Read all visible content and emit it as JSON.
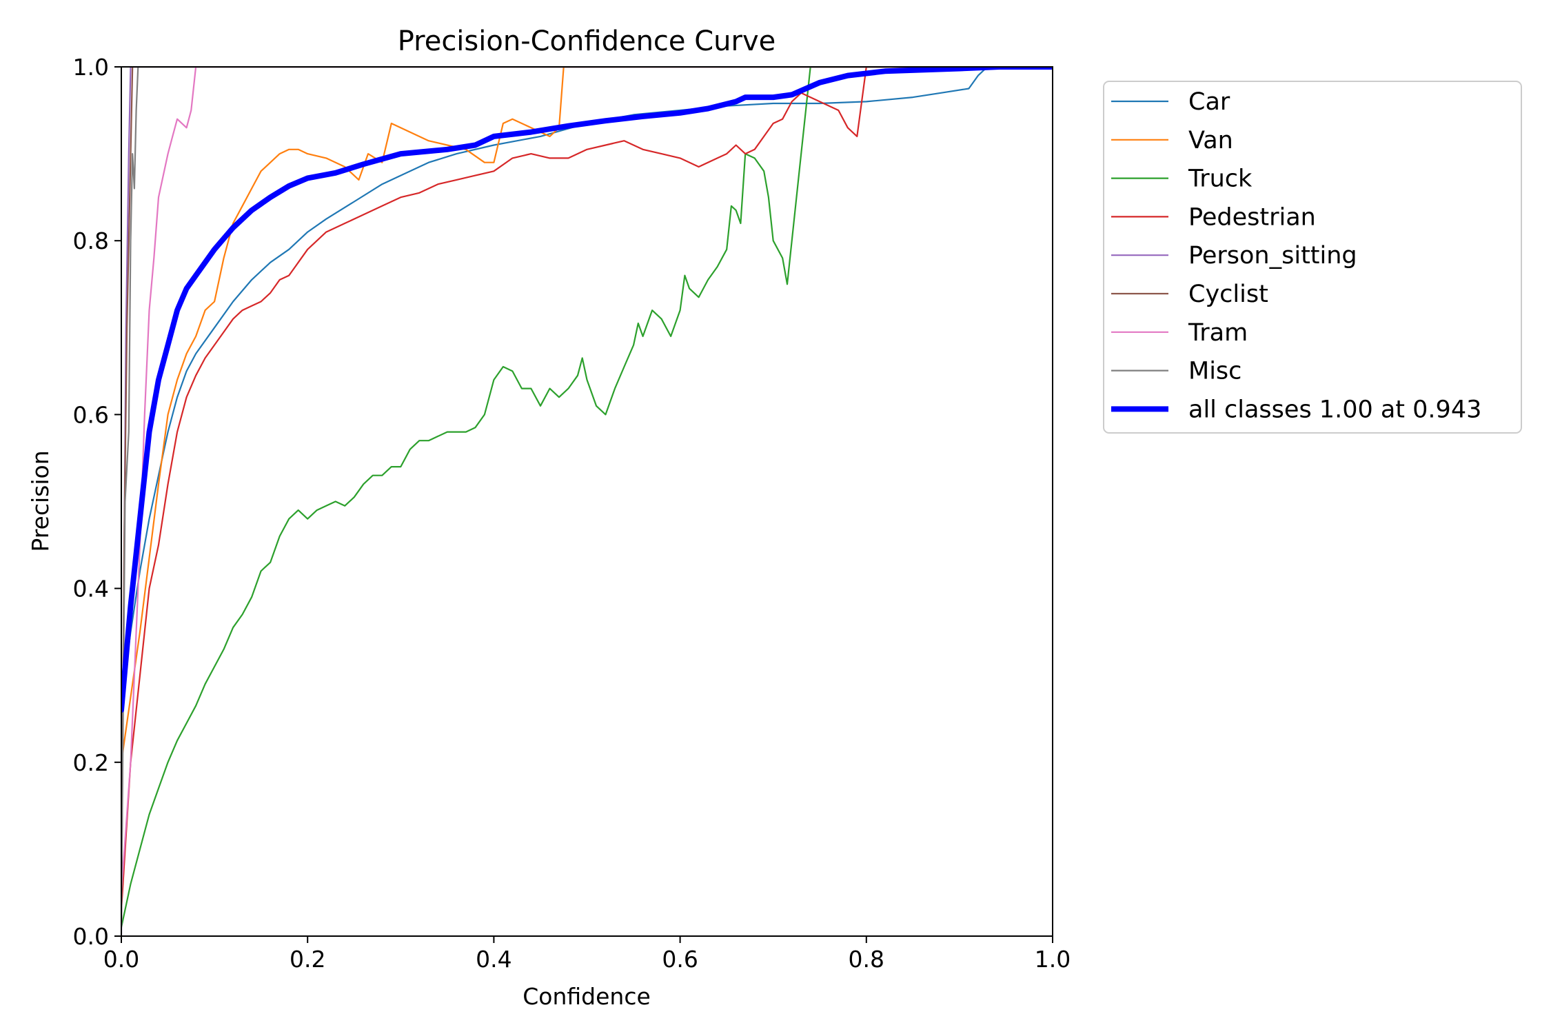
{
  "chart_data": {
    "type": "line",
    "title": "Precision-Confidence Curve",
    "xlabel": "Confidence",
    "ylabel": "Precision",
    "xlim": [
      0.0,
      1.0
    ],
    "ylim": [
      0.0,
      1.0
    ],
    "xticks": [
      "0.0",
      "0.2",
      "0.4",
      "0.6",
      "0.8",
      "1.0"
    ],
    "yticks": [
      "0.0",
      "0.2",
      "0.4",
      "0.6",
      "0.8",
      "1.0"
    ],
    "grid": false,
    "legend_position": "outside-right-top",
    "series": [
      {
        "name": "Car",
        "color": "#1f77b4",
        "points": [
          [
            0.0,
            0.27
          ],
          [
            0.01,
            0.35
          ],
          [
            0.02,
            0.42
          ],
          [
            0.03,
            0.48
          ],
          [
            0.04,
            0.53
          ],
          [
            0.05,
            0.58
          ],
          [
            0.06,
            0.62
          ],
          [
            0.07,
            0.65
          ],
          [
            0.08,
            0.67
          ],
          [
            0.1,
            0.7
          ],
          [
            0.12,
            0.73
          ],
          [
            0.14,
            0.755
          ],
          [
            0.16,
            0.775
          ],
          [
            0.18,
            0.79
          ],
          [
            0.2,
            0.81
          ],
          [
            0.22,
            0.825
          ],
          [
            0.25,
            0.845
          ],
          [
            0.28,
            0.865
          ],
          [
            0.3,
            0.875
          ],
          [
            0.33,
            0.89
          ],
          [
            0.36,
            0.9
          ],
          [
            0.4,
            0.91
          ],
          [
            0.45,
            0.92
          ],
          [
            0.5,
            0.935
          ],
          [
            0.55,
            0.945
          ],
          [
            0.6,
            0.95
          ],
          [
            0.65,
            0.955
          ],
          [
            0.7,
            0.958
          ],
          [
            0.75,
            0.958
          ],
          [
            0.8,
            0.96
          ],
          [
            0.85,
            0.965
          ],
          [
            0.88,
            0.97
          ],
          [
            0.91,
            0.975
          ],
          [
            0.92,
            0.99
          ],
          [
            0.93,
            1.0
          ],
          [
            1.0,
            1.0
          ]
        ]
      },
      {
        "name": "Van",
        "color": "#ff7f0e",
        "points": [
          [
            0.0,
            0.2
          ],
          [
            0.02,
            0.35
          ],
          [
            0.04,
            0.52
          ],
          [
            0.05,
            0.6
          ],
          [
            0.06,
            0.64
          ],
          [
            0.07,
            0.67
          ],
          [
            0.08,
            0.69
          ],
          [
            0.09,
            0.72
          ],
          [
            0.1,
            0.73
          ],
          [
            0.11,
            0.78
          ],
          [
            0.12,
            0.82
          ],
          [
            0.13,
            0.84
          ],
          [
            0.14,
            0.86
          ],
          [
            0.15,
            0.88
          ],
          [
            0.16,
            0.89
          ],
          [
            0.17,
            0.9
          ],
          [
            0.18,
            0.905
          ],
          [
            0.19,
            0.905
          ],
          [
            0.2,
            0.9
          ],
          [
            0.22,
            0.895
          ],
          [
            0.24,
            0.885
          ],
          [
            0.255,
            0.87
          ],
          [
            0.265,
            0.9
          ],
          [
            0.28,
            0.89
          ],
          [
            0.29,
            0.935
          ],
          [
            0.31,
            0.925
          ],
          [
            0.33,
            0.915
          ],
          [
            0.35,
            0.91
          ],
          [
            0.37,
            0.905
          ],
          [
            0.39,
            0.89
          ],
          [
            0.4,
            0.89
          ],
          [
            0.41,
            0.935
          ],
          [
            0.42,
            0.94
          ],
          [
            0.44,
            0.93
          ],
          [
            0.46,
            0.92
          ],
          [
            0.47,
            0.93
          ],
          [
            0.475,
            1.0
          ],
          [
            1.0,
            1.0
          ]
        ]
      },
      {
        "name": "Truck",
        "color": "#2ca02c",
        "points": [
          [
            0.0,
            0.01
          ],
          [
            0.01,
            0.06
          ],
          [
            0.02,
            0.1
          ],
          [
            0.03,
            0.14
          ],
          [
            0.04,
            0.17
          ],
          [
            0.05,
            0.2
          ],
          [
            0.06,
            0.225
          ],
          [
            0.07,
            0.245
          ],
          [
            0.08,
            0.265
          ],
          [
            0.09,
            0.29
          ],
          [
            0.1,
            0.31
          ],
          [
            0.11,
            0.33
          ],
          [
            0.12,
            0.355
          ],
          [
            0.13,
            0.37
          ],
          [
            0.14,
            0.39
          ],
          [
            0.15,
            0.42
          ],
          [
            0.16,
            0.43
          ],
          [
            0.17,
            0.46
          ],
          [
            0.18,
            0.48
          ],
          [
            0.19,
            0.49
          ],
          [
            0.2,
            0.48
          ],
          [
            0.21,
            0.49
          ],
          [
            0.22,
            0.495
          ],
          [
            0.23,
            0.5
          ],
          [
            0.24,
            0.495
          ],
          [
            0.25,
            0.505
          ],
          [
            0.26,
            0.52
          ],
          [
            0.27,
            0.53
          ],
          [
            0.28,
            0.53
          ],
          [
            0.29,
            0.54
          ],
          [
            0.3,
            0.54
          ],
          [
            0.31,
            0.56
          ],
          [
            0.32,
            0.57
          ],
          [
            0.33,
            0.57
          ],
          [
            0.34,
            0.575
          ],
          [
            0.35,
            0.58
          ],
          [
            0.36,
            0.58
          ],
          [
            0.37,
            0.58
          ],
          [
            0.38,
            0.585
          ],
          [
            0.39,
            0.6
          ],
          [
            0.4,
            0.64
          ],
          [
            0.41,
            0.655
          ],
          [
            0.42,
            0.65
          ],
          [
            0.43,
            0.63
          ],
          [
            0.44,
            0.63
          ],
          [
            0.45,
            0.61
          ],
          [
            0.46,
            0.63
          ],
          [
            0.47,
            0.62
          ],
          [
            0.48,
            0.63
          ],
          [
            0.49,
            0.645
          ],
          [
            0.495,
            0.665
          ],
          [
            0.5,
            0.64
          ],
          [
            0.51,
            0.61
          ],
          [
            0.52,
            0.6
          ],
          [
            0.53,
            0.63
          ],
          [
            0.54,
            0.655
          ],
          [
            0.55,
            0.68
          ],
          [
            0.555,
            0.705
          ],
          [
            0.56,
            0.69
          ],
          [
            0.57,
            0.72
          ],
          [
            0.58,
            0.71
          ],
          [
            0.59,
            0.69
          ],
          [
            0.6,
            0.72
          ],
          [
            0.605,
            0.76
          ],
          [
            0.61,
            0.745
          ],
          [
            0.62,
            0.735
          ],
          [
            0.63,
            0.755
          ],
          [
            0.64,
            0.77
          ],
          [
            0.65,
            0.79
          ],
          [
            0.655,
            0.84
          ],
          [
            0.66,
            0.835
          ],
          [
            0.665,
            0.82
          ],
          [
            0.67,
            0.9
          ],
          [
            0.68,
            0.895
          ],
          [
            0.69,
            0.88
          ],
          [
            0.695,
            0.85
          ],
          [
            0.7,
            0.8
          ],
          [
            0.71,
            0.78
          ],
          [
            0.715,
            0.75
          ],
          [
            0.73,
            0.9
          ],
          [
            0.74,
            1.0
          ],
          [
            1.0,
            1.0
          ]
        ]
      },
      {
        "name": "Pedestrian",
        "color": "#d62728",
        "points": [
          [
            0.0,
            0.03
          ],
          [
            0.01,
            0.2
          ],
          [
            0.02,
            0.3
          ],
          [
            0.03,
            0.4
          ],
          [
            0.04,
            0.45
          ],
          [
            0.05,
            0.52
          ],
          [
            0.06,
            0.58
          ],
          [
            0.07,
            0.62
          ],
          [
            0.08,
            0.645
          ],
          [
            0.09,
            0.665
          ],
          [
            0.1,
            0.68
          ],
          [
            0.11,
            0.695
          ],
          [
            0.12,
            0.71
          ],
          [
            0.13,
            0.72
          ],
          [
            0.14,
            0.725
          ],
          [
            0.15,
            0.73
          ],
          [
            0.16,
            0.74
          ],
          [
            0.17,
            0.755
          ],
          [
            0.18,
            0.76
          ],
          [
            0.19,
            0.775
          ],
          [
            0.2,
            0.79
          ],
          [
            0.21,
            0.8
          ],
          [
            0.22,
            0.81
          ],
          [
            0.24,
            0.82
          ],
          [
            0.26,
            0.83
          ],
          [
            0.28,
            0.84
          ],
          [
            0.3,
            0.85
          ],
          [
            0.32,
            0.855
          ],
          [
            0.34,
            0.865
          ],
          [
            0.36,
            0.87
          ],
          [
            0.38,
            0.875
          ],
          [
            0.4,
            0.88
          ],
          [
            0.42,
            0.895
          ],
          [
            0.44,
            0.9
          ],
          [
            0.46,
            0.895
          ],
          [
            0.48,
            0.895
          ],
          [
            0.5,
            0.905
          ],
          [
            0.52,
            0.91
          ],
          [
            0.54,
            0.915
          ],
          [
            0.56,
            0.905
          ],
          [
            0.58,
            0.9
          ],
          [
            0.6,
            0.895
          ],
          [
            0.62,
            0.885
          ],
          [
            0.64,
            0.895
          ],
          [
            0.65,
            0.9
          ],
          [
            0.66,
            0.91
          ],
          [
            0.67,
            0.9
          ],
          [
            0.68,
            0.905
          ],
          [
            0.69,
            0.92
          ],
          [
            0.7,
            0.935
          ],
          [
            0.71,
            0.94
          ],
          [
            0.72,
            0.96
          ],
          [
            0.73,
            0.97
          ],
          [
            0.74,
            0.965
          ],
          [
            0.76,
            0.955
          ],
          [
            0.77,
            0.95
          ],
          [
            0.78,
            0.93
          ],
          [
            0.79,
            0.92
          ],
          [
            0.8,
            1.0
          ],
          [
            1.0,
            1.0
          ]
        ]
      },
      {
        "name": "Person_sitting",
        "color": "#9467bd",
        "points": [
          [
            0.0,
            0.0
          ],
          [
            0.002,
            0.3
          ],
          [
            0.005,
            0.7
          ],
          [
            0.008,
            0.9
          ],
          [
            0.01,
            1.0
          ],
          [
            1.0,
            1.0
          ]
        ]
      },
      {
        "name": "Cyclist",
        "color": "#8c564b",
        "points": [
          [
            0.0,
            0.02
          ],
          [
            0.003,
            0.45
          ],
          [
            0.006,
            0.7
          ],
          [
            0.009,
            0.85
          ],
          [
            0.012,
            1.0
          ],
          [
            1.0,
            1.0
          ]
        ]
      },
      {
        "name": "Tram",
        "color": "#e377c2",
        "points": [
          [
            0.0,
            0.05
          ],
          [
            0.01,
            0.2
          ],
          [
            0.02,
            0.45
          ],
          [
            0.025,
            0.6
          ],
          [
            0.03,
            0.72
          ],
          [
            0.035,
            0.78
          ],
          [
            0.04,
            0.85
          ],
          [
            0.05,
            0.9
          ],
          [
            0.055,
            0.92
          ],
          [
            0.06,
            0.94
          ],
          [
            0.07,
            0.93
          ],
          [
            0.075,
            0.95
          ],
          [
            0.08,
            1.0
          ],
          [
            1.0,
            1.0
          ]
        ]
      },
      {
        "name": "Misc",
        "color": "#7f7f7f",
        "points": [
          [
            0.0,
            0.02
          ],
          [
            0.004,
            0.5
          ],
          [
            0.008,
            0.58
          ],
          [
            0.01,
            0.8
          ],
          [
            0.012,
            0.9
          ],
          [
            0.014,
            0.86
          ],
          [
            0.016,
            0.95
          ],
          [
            0.018,
            1.0
          ],
          [
            1.0,
            1.0
          ]
        ]
      },
      {
        "name": "all classes 1.00 at 0.943",
        "color": "#0000ff",
        "thick": true,
        "points": [
          [
            0.0,
            0.26
          ],
          [
            0.01,
            0.38
          ],
          [
            0.02,
            0.48
          ],
          [
            0.03,
            0.58
          ],
          [
            0.04,
            0.64
          ],
          [
            0.05,
            0.68
          ],
          [
            0.06,
            0.72
          ],
          [
            0.07,
            0.745
          ],
          [
            0.08,
            0.76
          ],
          [
            0.1,
            0.79
          ],
          [
            0.12,
            0.815
          ],
          [
            0.14,
            0.835
          ],
          [
            0.16,
            0.85
          ],
          [
            0.18,
            0.863
          ],
          [
            0.2,
            0.872
          ],
          [
            0.23,
            0.878
          ],
          [
            0.26,
            0.888
          ],
          [
            0.3,
            0.9
          ],
          [
            0.35,
            0.905
          ],
          [
            0.38,
            0.91
          ],
          [
            0.4,
            0.92
          ],
          [
            0.44,
            0.925
          ],
          [
            0.48,
            0.932
          ],
          [
            0.52,
            0.938
          ],
          [
            0.56,
            0.943
          ],
          [
            0.6,
            0.947
          ],
          [
            0.63,
            0.952
          ],
          [
            0.66,
            0.96
          ],
          [
            0.67,
            0.965
          ],
          [
            0.7,
            0.965
          ],
          [
            0.72,
            0.968
          ],
          [
            0.75,
            0.982
          ],
          [
            0.78,
            0.99
          ],
          [
            0.82,
            0.995
          ],
          [
            0.9,
            0.998
          ],
          [
            0.943,
            1.0
          ],
          [
            1.0,
            1.0
          ]
        ]
      }
    ]
  }
}
